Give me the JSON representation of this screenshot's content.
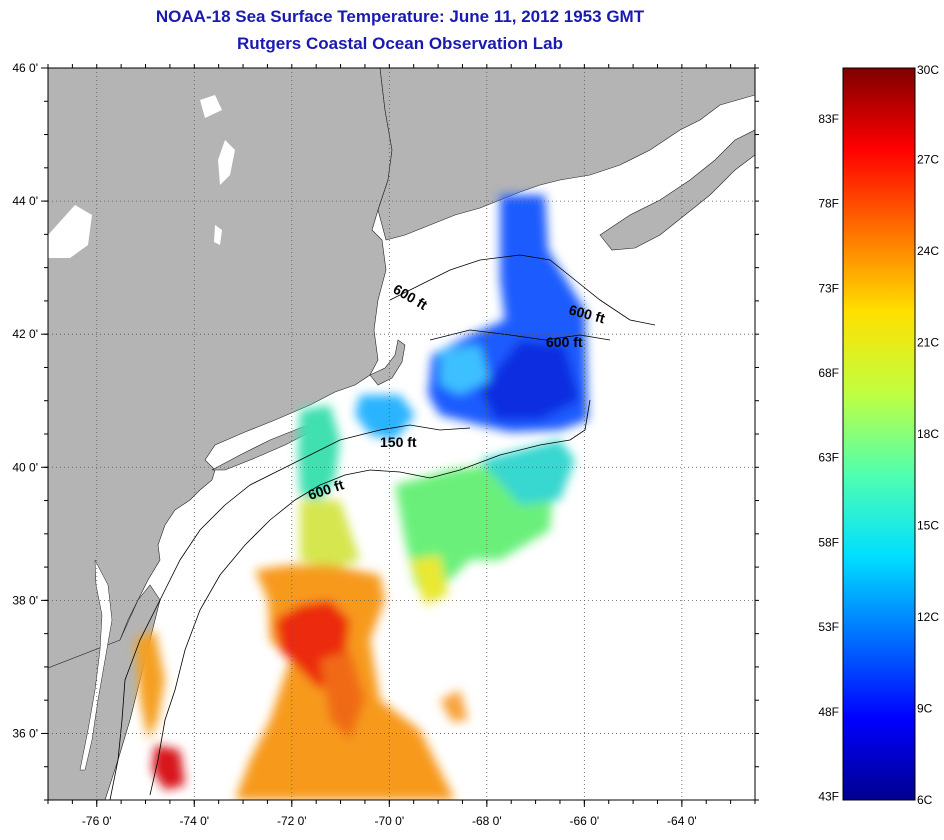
{
  "title": {
    "line1": "NOAA-18 Sea Surface Temperature:  June 11, 2012 1953 GMT",
    "line2": "Rutgers Coastal Ocean Observation Lab"
  },
  "map": {
    "lon_range": [
      -77,
      -62.5
    ],
    "lat_range": [
      35,
      46
    ],
    "lon_ticks": [
      {
        "value": -76,
        "label": "-76 0'"
      },
      {
        "value": -74,
        "label": "-74 0'"
      },
      {
        "value": -72,
        "label": "-72 0'"
      },
      {
        "value": -70,
        "label": "-70 0'"
      },
      {
        "value": -68,
        "label": "-68 0'"
      },
      {
        "value": -66,
        "label": "-66 0'"
      },
      {
        "value": -64,
        "label": "-64 0'"
      }
    ],
    "lat_ticks": [
      {
        "value": 46,
        "label": "46 0'"
      },
      {
        "value": 44,
        "label": "44 0'"
      },
      {
        "value": 42,
        "label": "42 0'"
      },
      {
        "value": 40,
        "label": "40 0'"
      },
      {
        "value": 38,
        "label": "38 0'"
      },
      {
        "value": 36,
        "label": "36 0'"
      }
    ],
    "contour_labels": [
      "600 ft",
      "600 ft",
      "600 ft",
      "150 ft",
      "600 ft"
    ],
    "colors": {
      "land": "#b4b4b4",
      "ocean": "#ffffff",
      "grid": "#555555"
    }
  },
  "colorbar": {
    "range_c": [
      6,
      30
    ],
    "celsius_labels": [
      {
        "value": 30,
        "label": "30C"
      },
      {
        "value": 27,
        "label": "27C"
      },
      {
        "value": 24,
        "label": "24C"
      },
      {
        "value": 21,
        "label": "21C"
      },
      {
        "value": 18,
        "label": "18C"
      },
      {
        "value": 15,
        "label": "15C"
      },
      {
        "value": 12,
        "label": "12C"
      },
      {
        "value": 9,
        "label": "9C"
      },
      {
        "value": 6,
        "label": "6C"
      }
    ],
    "fahrenheit_labels": [
      {
        "value": 83,
        "label": "83F"
      },
      {
        "value": 78,
        "label": "78F"
      },
      {
        "value": 73,
        "label": "73F"
      },
      {
        "value": 68,
        "label": "68F"
      },
      {
        "value": 63,
        "label": "63F"
      },
      {
        "value": 58,
        "label": "58F"
      },
      {
        "value": 53,
        "label": "53F"
      },
      {
        "value": 48,
        "label": "48F"
      },
      {
        "value": 43,
        "label": "43F"
      }
    ],
    "gradient": [
      "#00008f",
      "#0000ff",
      "#0070ff",
      "#00dfff",
      "#50ffaf",
      "#c0ff40",
      "#ffe000",
      "#ff7000",
      "#ff0000",
      "#7f0000"
    ]
  }
}
